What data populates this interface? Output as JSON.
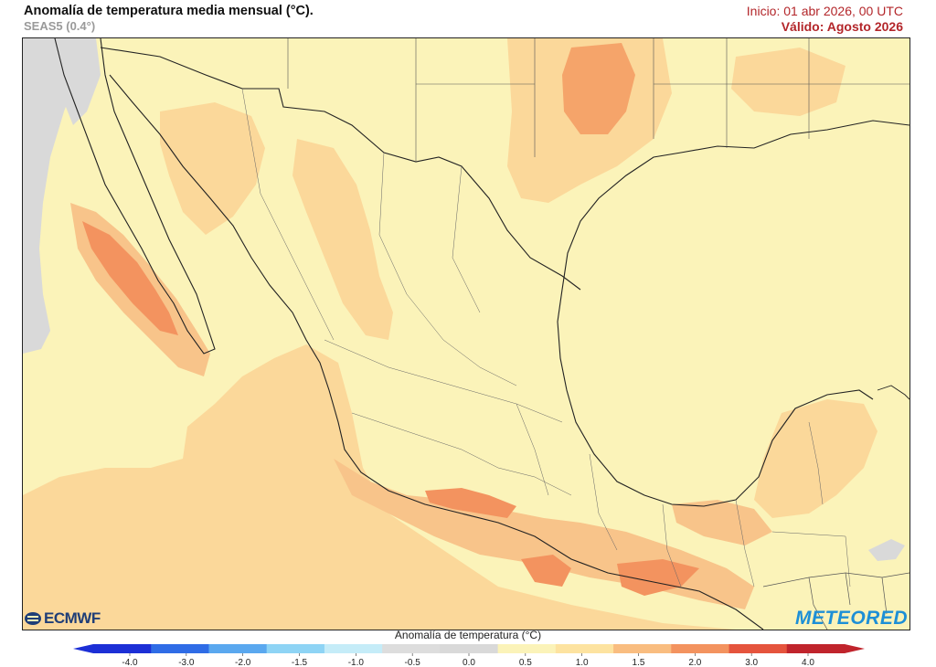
{
  "header": {
    "title": "Anomalía de temperatura media mensual (°C).",
    "subtitle": "SEAS5 (0.4°)",
    "init": "Inicio: 01 abr 2026, 00 UTC",
    "valid": "Válido: Agosto 2026"
  },
  "map": {
    "region": "Mexico and Gulf of Mexico",
    "logos": {
      "left": "ECMWF",
      "right": "METEORED"
    }
  },
  "legend": {
    "title": "Anomalía de temperatura (°C)",
    "ticks": [
      "-4.0",
      "-3.0",
      "-2.0",
      "-1.5",
      "-1.0",
      "-0.5",
      "0.0",
      "0.5",
      "1.0",
      "1.5",
      "2.0",
      "3.0",
      "4.0"
    ],
    "colors": [
      "#1c2fd6",
      "#2f6ce6",
      "#5aa8ef",
      "#8ed4f5",
      "#c5ecf8",
      "#dddddd",
      "#d9d9d9",
      "#fbf3b9",
      "#fde3a0",
      "#f9bd80",
      "#f3935f",
      "#e5543d",
      "#c0242c"
    ]
  }
}
